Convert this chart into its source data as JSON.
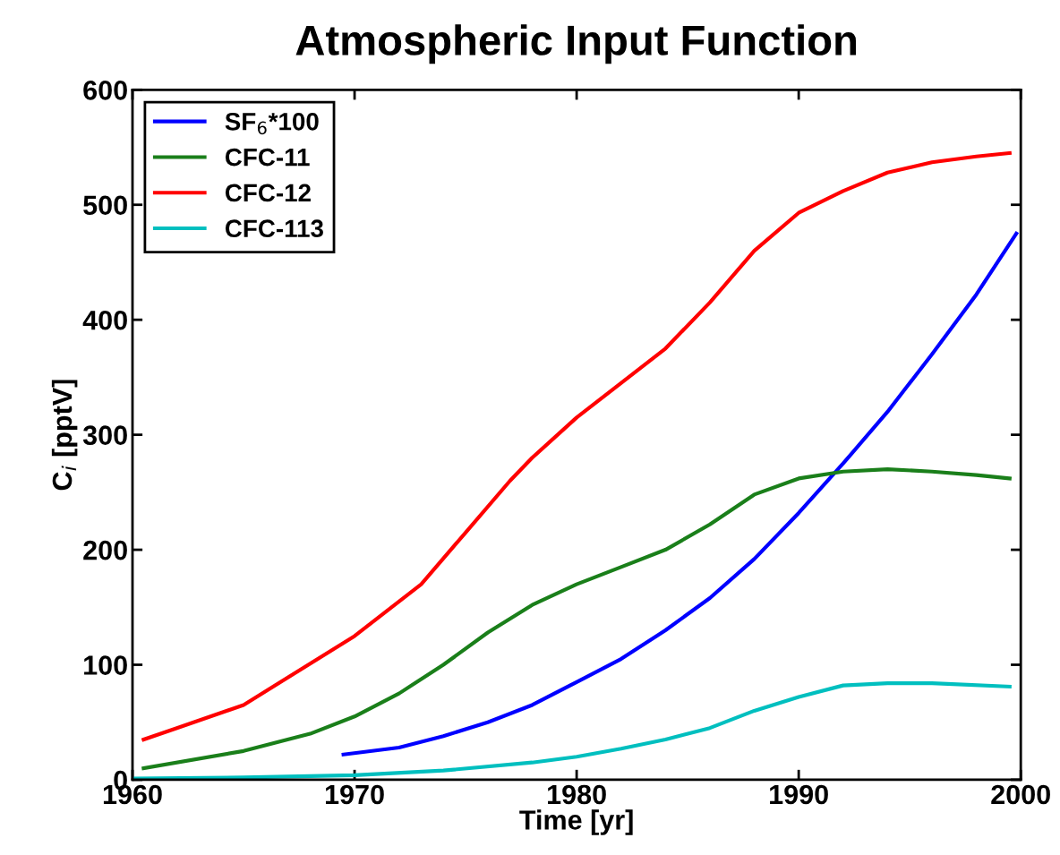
{
  "chart_data": {
    "type": "line",
    "title": "Atmospheric Input Function",
    "xlabel": "Time [yr]",
    "ylabel": "C$_{i}$ [pptV]",
    "xlim": [
      1960,
      2000
    ],
    "xticks": [
      1960,
      1970,
      1980,
      1990,
      2000
    ],
    "ylim": [
      0,
      600
    ],
    "yticks": [
      0,
      100,
      200,
      300,
      400,
      500,
      600
    ],
    "grid": false,
    "legend": "top left",
    "line_style": "solid",
    "marker": "none",
    "series": [
      {
        "name": "SF$_{6}$*100",
        "color": "#0000ff",
        "x": [
          1969.5,
          1972,
          1974,
          1976,
          1978,
          1980,
          1982,
          1984,
          1986,
          1988,
          1990,
          1992,
          1994,
          1996,
          1998,
          1999.8
        ],
        "values": [
          22,
          28,
          38,
          50,
          65,
          85,
          105,
          130,
          158,
          192,
          232,
          275,
          320,
          370,
          422,
          475
        ]
      },
      {
        "name": "CFC-11",
        "color": "#1a7f1a",
        "x": [
          1960.5,
          1965,
          1968,
          1970,
          1972,
          1974,
          1976,
          1978,
          1980,
          1982,
          1984,
          1986,
          1988,
          1990,
          1992,
          1994,
          1996,
          1998,
          1999.5
        ],
        "values": [
          10,
          25,
          40,
          55,
          75,
          100,
          128,
          152,
          170,
          185,
          200,
          222,
          248,
          262,
          268,
          270,
          268,
          265,
          262
        ]
      },
      {
        "name": "CFC-12",
        "color": "#ff0000",
        "x": [
          1960.5,
          1962,
          1965,
          1970,
          1973,
          1975,
          1977,
          1978,
          1980,
          1982,
          1984,
          1986,
          1988,
          1990,
          1992,
          1994,
          1996,
          1998,
          1999.5
        ],
        "values": [
          35,
          45,
          65,
          125,
          170,
          215,
          260,
          280,
          315,
          345,
          375,
          415,
          460,
          493,
          512,
          528,
          537,
          542,
          545
        ]
      },
      {
        "name": "CFC-113",
        "color": "#00bfbf",
        "x": [
          1960,
          1965,
          1970,
          1974,
          1978,
          1980,
          1982,
          1984,
          1986,
          1988,
          1990,
          1992,
          1994,
          1996,
          1999.5
        ],
        "values": [
          1,
          2,
          4,
          8,
          15,
          20,
          27,
          35,
          45,
          60,
          72,
          82,
          84,
          84,
          81
        ]
      }
    ]
  }
}
